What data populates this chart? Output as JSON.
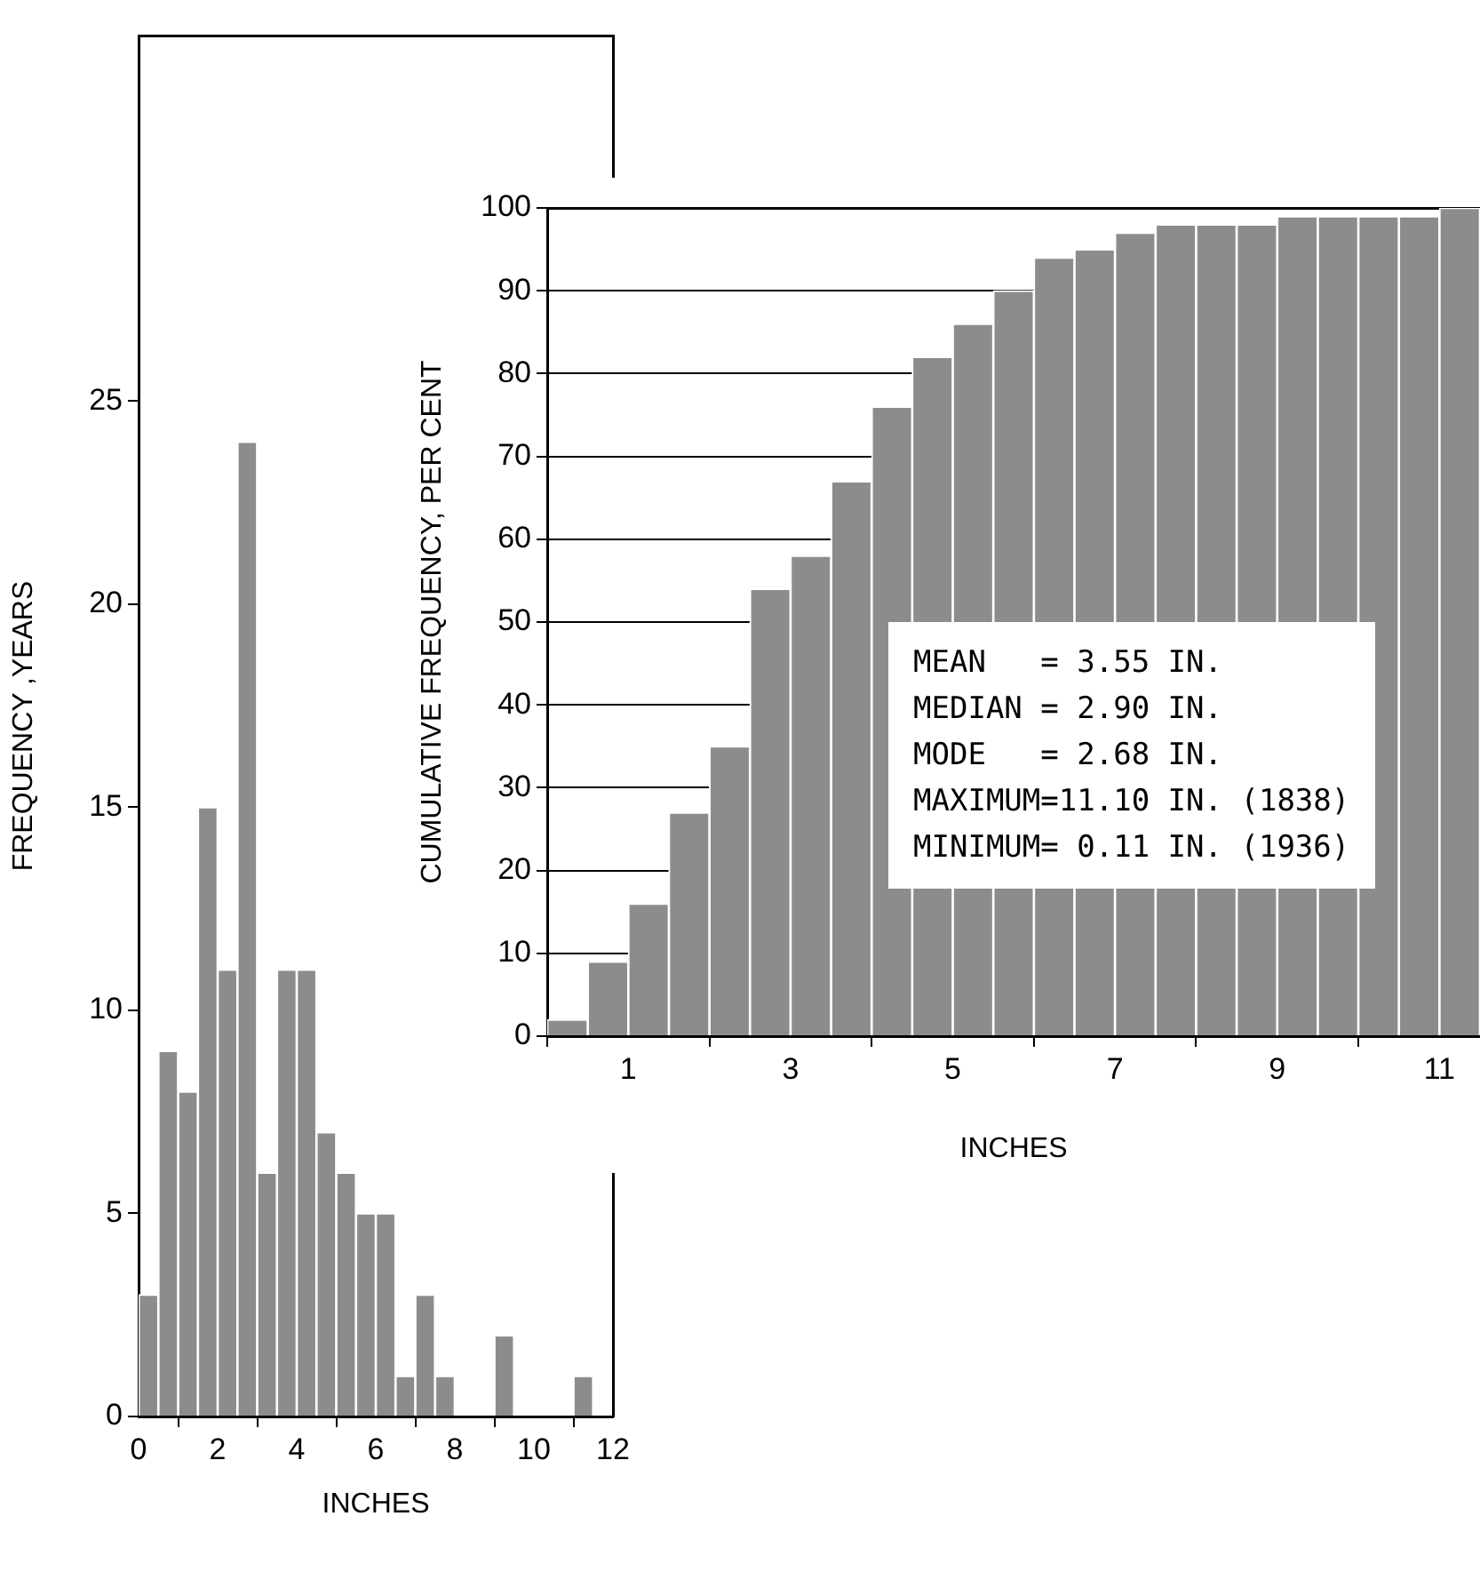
{
  "chart_data": [
    {
      "type": "histogram",
      "xlabel": "INCHES",
      "ylabel": "FREQUENCY ,YEARS",
      "bins": [
        0,
        0.5,
        1,
        1.5,
        2,
        2.5,
        3,
        3.5,
        4,
        4.5,
        5,
        5.5,
        6,
        6.5,
        7,
        7.5,
        8,
        8.5,
        9,
        9.5,
        10,
        10.5,
        11,
        11.5,
        12
      ],
      "values": [
        3,
        9,
        8,
        15,
        11,
        24,
        6,
        11,
        11,
        7,
        6,
        5,
        5,
        1,
        3,
        1,
        0,
        0,
        2,
        0,
        0,
        0,
        1,
        0
      ],
      "color": "#8c8c8c",
      "xlim": [
        0,
        12
      ],
      "xticks": [
        0,
        2,
        4,
        6,
        8,
        10,
        12
      ],
      "ylim": [
        0,
        34
      ],
      "yticks": [
        0,
        5,
        10,
        15,
        20,
        25
      ],
      "grid": false
    },
    {
      "type": "histogram",
      "xlabel": "INCHES",
      "ylabel": "CUMULATIVE FREQUENCY, PER CENT",
      "bins": [
        0,
        0.5,
        1,
        1.5,
        2,
        2.5,
        3,
        3.5,
        4,
        4.5,
        5,
        5.5,
        6,
        6.5,
        7,
        7.5,
        8,
        8.5,
        9,
        9.5,
        10,
        10.5,
        11,
        11.5
      ],
      "values": [
        2,
        9,
        16,
        27,
        35,
        54,
        58,
        67,
        76,
        82,
        86,
        90,
        94,
        95,
        97,
        98,
        98,
        98,
        99,
        99,
        99,
        99,
        100
      ],
      "color": "#8c8c8c",
      "xlim": [
        0,
        11.5
      ],
      "xticks": [
        1,
        3,
        5,
        7,
        9,
        11
      ],
      "ylim": [
        0,
        100
      ],
      "yticks": [
        0,
        10,
        20,
        30,
        40,
        50,
        60,
        70,
        80,
        90,
        100
      ],
      "grid": "y",
      "annotations": [
        "MEAN   = 3.55 IN.",
        "MEDIAN = 2.90 IN.",
        "MODE   = 2.68 IN.",
        "MAXIMUM=11.10 IN. (1838)",
        "MINIMUM= 0.11 IN. (1936)"
      ]
    }
  ]
}
